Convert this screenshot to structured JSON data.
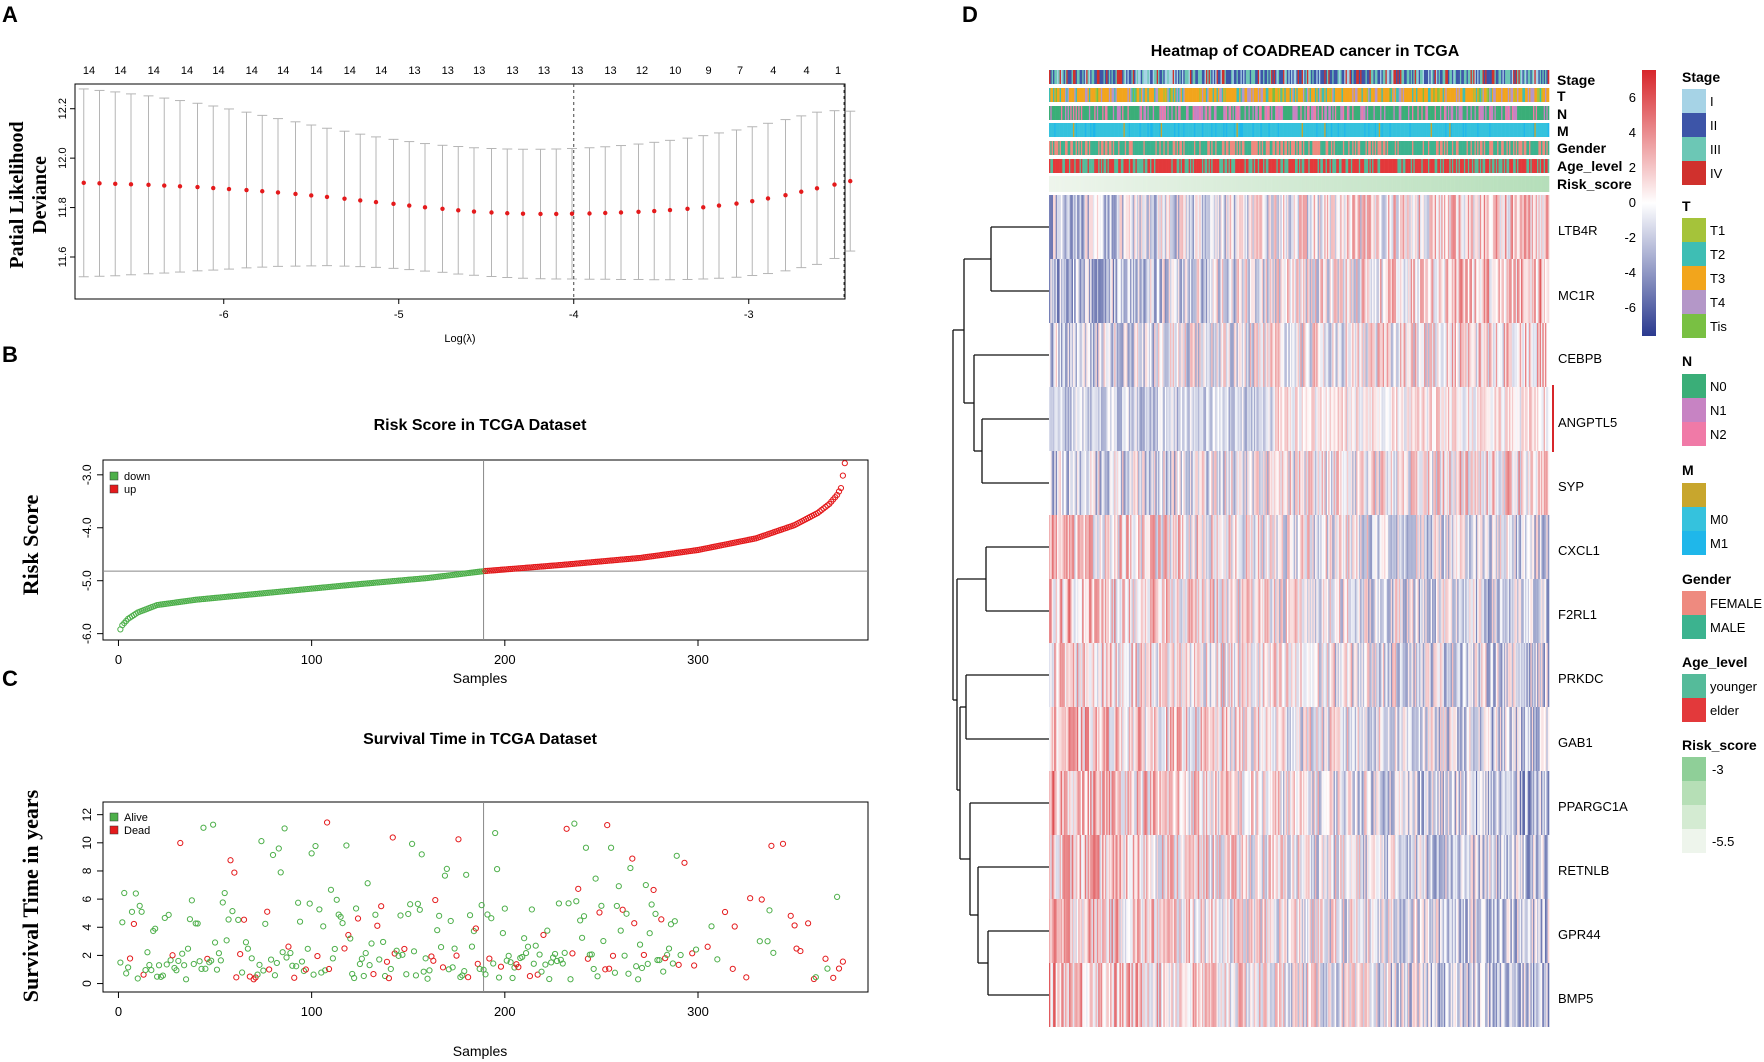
{
  "panel_labels": {
    "a": "A",
    "b": "B",
    "c": "C",
    "d": "D"
  },
  "chart_data": [
    {
      "id": "lasso",
      "type": "line",
      "title": "",
      "xlabel": "Log(λ)",
      "ylabel": [
        "Patial Likelihood",
        "Deviance"
      ],
      "xlim": [
        -6.85,
        -2.45
      ],
      "ylim": [
        11.43,
        12.3
      ],
      "xticks": [
        -6,
        -5,
        -4,
        -3
      ],
      "xtick_labels": [
        "-6",
        "-5",
        "-4",
        "-3"
      ],
      "yticks": [
        11.6,
        11.8,
        12.0,
        12.2
      ],
      "ytick_labels": [
        "11.6",
        "11.8",
        "12.0",
        "12.2"
      ],
      "top_counts": [
        14,
        14,
        14,
        14,
        14,
        14,
        14,
        14,
        14,
        14,
        13,
        13,
        13,
        13,
        13,
        13,
        13,
        12,
        10,
        9,
        7,
        4,
        4,
        1
      ],
      "top_count_x": [
        -6.77,
        -6.59,
        -6.4,
        -6.21,
        -6.03,
        -5.84,
        -5.66,
        -5.47,
        -5.28,
        -5.1,
        -4.91,
        -4.72,
        -4.54,
        -4.35,
        -4.17,
        -3.98,
        -3.79,
        -3.61,
        -3.42,
        -3.23,
        -3.05,
        -2.86,
        -2.67,
        -2.49
      ],
      "vlines": [
        -4.0,
        -2.4
      ],
      "series": [
        {
          "name": "mean",
          "x": [
            -6.8,
            -6.71,
            -6.62,
            -6.53,
            -6.43,
            -6.34,
            -6.25,
            -6.15,
            -6.06,
            -5.97,
            -5.87,
            -5.78,
            -5.69,
            -5.59,
            -5.5,
            -5.41,
            -5.31,
            -5.22,
            -5.13,
            -5.03,
            -4.94,
            -4.85,
            -4.75,
            -4.66,
            -4.57,
            -4.47,
            -4.38,
            -4.29,
            -4.19,
            -4.1,
            -4.01,
            -3.91,
            -3.82,
            -3.73,
            -3.63,
            -3.54,
            -3.45,
            -3.35,
            -3.26,
            -3.17,
            -3.07,
            -2.98,
            -2.89,
            -2.79,
            -2.7,
            -2.61,
            -2.51,
            -2.42
          ],
          "values": [
            11.9,
            11.898,
            11.896,
            11.894,
            11.892,
            11.889,
            11.886,
            11.883,
            11.879,
            11.875,
            11.871,
            11.866,
            11.861,
            11.855,
            11.849,
            11.843,
            11.836,
            11.829,
            11.822,
            11.815,
            11.808,
            11.801,
            11.795,
            11.789,
            11.784,
            11.78,
            11.777,
            11.775,
            11.774,
            11.774,
            11.775,
            11.776,
            11.778,
            11.78,
            11.783,
            11.786,
            11.79,
            11.795,
            11.801,
            11.808,
            11.816,
            11.826,
            11.837,
            11.85,
            11.864,
            11.878,
            11.893,
            11.907
          ]
        },
        {
          "name": "upper",
          "values": [
            12.28,
            12.274,
            12.268,
            12.26,
            12.252,
            12.243,
            12.233,
            12.222,
            12.211,
            12.199,
            12.186,
            12.173,
            12.16,
            12.147,
            12.134,
            12.121,
            12.109,
            12.097,
            12.086,
            12.076,
            12.067,
            12.059,
            12.052,
            12.047,
            12.042,
            12.039,
            12.037,
            12.036,
            12.036,
            12.037,
            12.039,
            12.042,
            12.046,
            12.051,
            12.057,
            12.064,
            12.072,
            12.081,
            12.091,
            12.102,
            12.114,
            12.127,
            12.141,
            12.156,
            12.171,
            12.186,
            12.192,
            12.19
          ]
        },
        {
          "name": "lower",
          "values": [
            11.52,
            11.522,
            11.524,
            11.528,
            11.532,
            11.535,
            11.539,
            11.544,
            11.547,
            11.551,
            11.556,
            11.559,
            11.562,
            11.563,
            11.564,
            11.565,
            11.563,
            11.561,
            11.558,
            11.554,
            11.549,
            11.543,
            11.538,
            11.531,
            11.526,
            11.521,
            11.517,
            11.514,
            11.512,
            11.511,
            11.511,
            11.51,
            11.51,
            11.509,
            11.509,
            11.508,
            11.508,
            11.509,
            11.511,
            11.514,
            11.518,
            11.525,
            11.533,
            11.544,
            11.557,
            11.57,
            11.594,
            11.624
          ]
        }
      ],
      "colors": {
        "mean": "#e41a1c",
        "bars": "#b5b5b5"
      }
    },
    {
      "id": "risk",
      "type": "scatter",
      "title": "Risk Score in TCGA Dataset",
      "xlabel": "Samples",
      "ylabel": "Risk Score",
      "xlim": [
        -8,
        388
      ],
      "ylim": [
        -6.12,
        -2.72
      ],
      "xticks": [
        0,
        100,
        200,
        300
      ],
      "xtick_labels": [
        "0",
        "100",
        "200",
        "300"
      ],
      "yticks": [
        -6.0,
        -5.0,
        -4.0,
        -3.0
      ],
      "ytick_labels": [
        "-6.0",
        "-5.0",
        "-4.0",
        "-3.0"
      ],
      "n_samples": 376,
      "cutoff_sample": 189,
      "cutoff_score": -4.82,
      "curve_anchors_x": [
        1,
        2,
        5,
        10,
        20,
        40,
        80,
        120,
        160,
        189,
        230,
        270,
        300,
        330,
        350,
        362,
        368,
        372,
        374,
        376
      ],
      "curve_anchors_y": [
        -5.92,
        -5.84,
        -5.72,
        -5.6,
        -5.46,
        -5.36,
        -5.22,
        -5.08,
        -4.95,
        -4.82,
        -4.7,
        -4.57,
        -4.42,
        -4.2,
        -3.95,
        -3.72,
        -3.55,
        -3.38,
        -3.25,
        -2.78
      ],
      "legend": [
        {
          "label": "down",
          "color": "#4daf4a"
        },
        {
          "label": "up",
          "color": "#e41a1c"
        }
      ]
    },
    {
      "id": "survival",
      "type": "scatter",
      "title": "Survival Time in TCGA Dataset",
      "xlabel": "Samples",
      "ylabel": "Survival Time in years",
      "xlim": [
        -8,
        388
      ],
      "ylim": [
        -0.6,
        12.9
      ],
      "xticks": [
        0,
        100,
        200,
        300
      ],
      "xtick_labels": [
        "0",
        "100",
        "200",
        "300"
      ],
      "yticks": [
        0,
        2,
        4,
        6,
        8,
        10,
        12
      ],
      "ytick_labels": [
        "0",
        "2",
        "4",
        "6",
        "8",
        "10",
        "12"
      ],
      "cutoff_sample": 189,
      "legend": [
        {
          "label": "Alive",
          "color": "#4daf4a"
        },
        {
          "label": "Dead",
          "color": "#e41a1c"
        }
      ]
    },
    {
      "id": "heatmap",
      "type": "heatmap",
      "title": "Heatmap of COADREAD cancer in TCGA",
      "genes": [
        "LTB4R",
        "MC1R",
        "CEBPB",
        "ANGPTL5",
        "SYP",
        "CXCL1",
        "F2RL1",
        "PRKDC",
        "GAB1",
        "PPARGC1A",
        "RETNLB",
        "GPR44",
        "BMP5"
      ],
      "annotation_tracks": [
        "Stage",
        "T",
        "N",
        "M",
        "Gender",
        "Age_level",
        "Risk_score"
      ],
      "n_samples": 376,
      "color_scale": {
        "ticks": [
          6,
          4,
          2,
          0,
          -2,
          -4,
          -6
        ],
        "tick_labels": [
          "6",
          "4",
          "2",
          "0",
          "-2",
          "-4",
          "-6"
        ],
        "low": "#2b3a8f",
        "mid": "#ffffff",
        "high": "#d7262b"
      },
      "gene_trend": [
        0.35,
        0.45,
        0.25,
        0.05,
        0.25,
        -0.25,
        -0.35,
        -0.25,
        -0.35,
        -0.45,
        -0.35,
        -0.35,
        -0.45
      ],
      "legends": [
        {
          "title": "Stage",
          "items": [
            {
              "label": "I",
              "color": "#a6d3e6"
            },
            {
              "label": "II",
              "color": "#3d55a8"
            },
            {
              "label": "III",
              "color": "#6cc7b5"
            },
            {
              "label": "IV",
              "color": "#d0312d"
            }
          ]
        },
        {
          "title": "T",
          "items": [
            {
              "label": "T1",
              "color": "#a5c33a"
            },
            {
              "label": "T2",
              "color": "#3ebeb4"
            },
            {
              "label": "T3",
              "color": "#f2a51c"
            },
            {
              "label": "T4",
              "color": "#b497c8"
            },
            {
              "label": "Tis",
              "color": "#79c043"
            }
          ]
        },
        {
          "title": "N",
          "items": [
            {
              "label": "N0",
              "color": "#3aae78"
            },
            {
              "label": "N1",
              "color": "#c783c3"
            },
            {
              "label": "N2",
              "color": "#f07aa7"
            }
          ]
        },
        {
          "title": "M",
          "items": [
            {
              "label": "",
              "color": "#c8a62d"
            },
            {
              "label": "M0",
              "color": "#35c2dd"
            },
            {
              "label": "M1",
              "color": "#1fb7ea"
            }
          ]
        },
        {
          "title": "Gender",
          "items": [
            {
              "label": "FEMALE",
              "color": "#ee8a7f"
            },
            {
              "label": "MALE",
              "color": "#3cb38f"
            }
          ]
        },
        {
          "title": "Age_level",
          "items": [
            {
              "label": "younger",
              "color": "#55bb9a"
            },
            {
              "label": "elder",
              "color": "#e3393b"
            }
          ]
        },
        {
          "title": "Risk_score",
          "items": [
            {
              "label": "-3",
              "color": "#8fcf98"
            },
            {
              "label": "",
              "color": "#b6dfb6"
            },
            {
              "label": "",
              "color": "#d4ebd2"
            },
            {
              "label": "-5.5",
              "color": "#eef5ec"
            }
          ]
        }
      ]
    }
  ]
}
